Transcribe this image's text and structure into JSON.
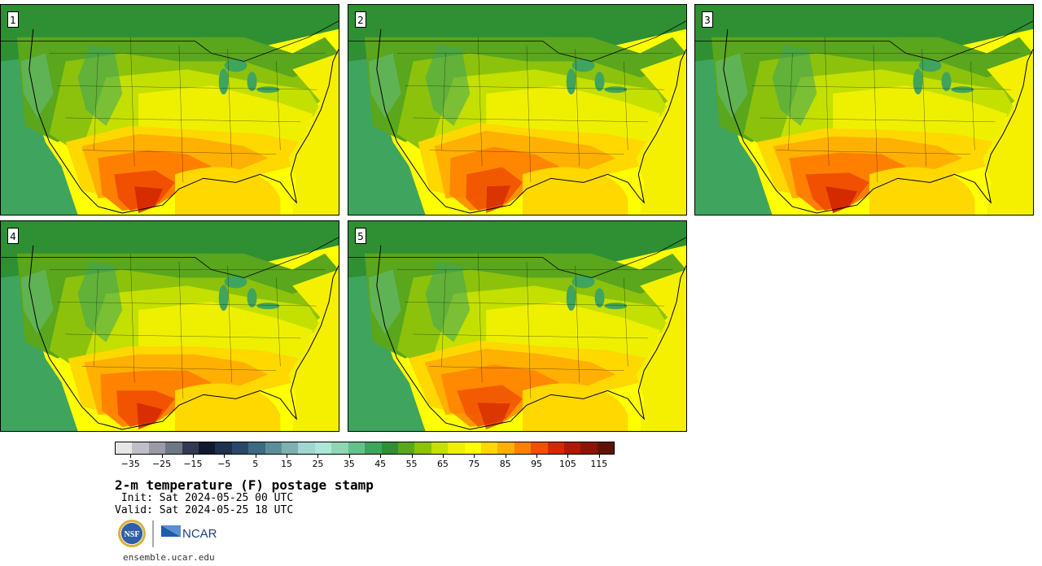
{
  "panels": [
    {
      "label": "1"
    },
    {
      "label": "2"
    },
    {
      "label": "3"
    },
    {
      "label": "4"
    },
    {
      "label": "5"
    }
  ],
  "colorbar": {
    "colors": [
      "#e6e6e6",
      "#bfbfc7",
      "#9a9aa8",
      "#6f7686",
      "#313a52",
      "#0f1a2e",
      "#1d304c",
      "#2b4868",
      "#3e6a82",
      "#5c8e99",
      "#7eb0b0",
      "#a2d6d0",
      "#aee6d8",
      "#8ed6b4",
      "#66c08c",
      "#3fa45e",
      "#2f8f33",
      "#5aa61c",
      "#8cc20c",
      "#c4e000",
      "#eef000",
      "#ffff00",
      "#ffd800",
      "#ffb000",
      "#ff8000",
      "#f05000",
      "#d42800",
      "#ae1a00",
      "#8c1406",
      "#611208"
    ],
    "tick_labels": [
      "−35",
      "−25",
      "−15",
      "−5",
      "5",
      "15",
      "25",
      "35",
      "45",
      "55",
      "65",
      "75",
      "85",
      "95",
      "105",
      "115"
    ],
    "range": [
      -40,
      120
    ]
  },
  "title": "2-m temperature (F) postage stamp",
  "init": " Init: Sat 2024-05-25 00 UTC",
  "valid": "Valid: Sat 2024-05-25 18 UTC",
  "logos": {
    "nsf": "NSF",
    "ncar": "NCAR"
  },
  "url": "ensemble.ucar.edu"
}
